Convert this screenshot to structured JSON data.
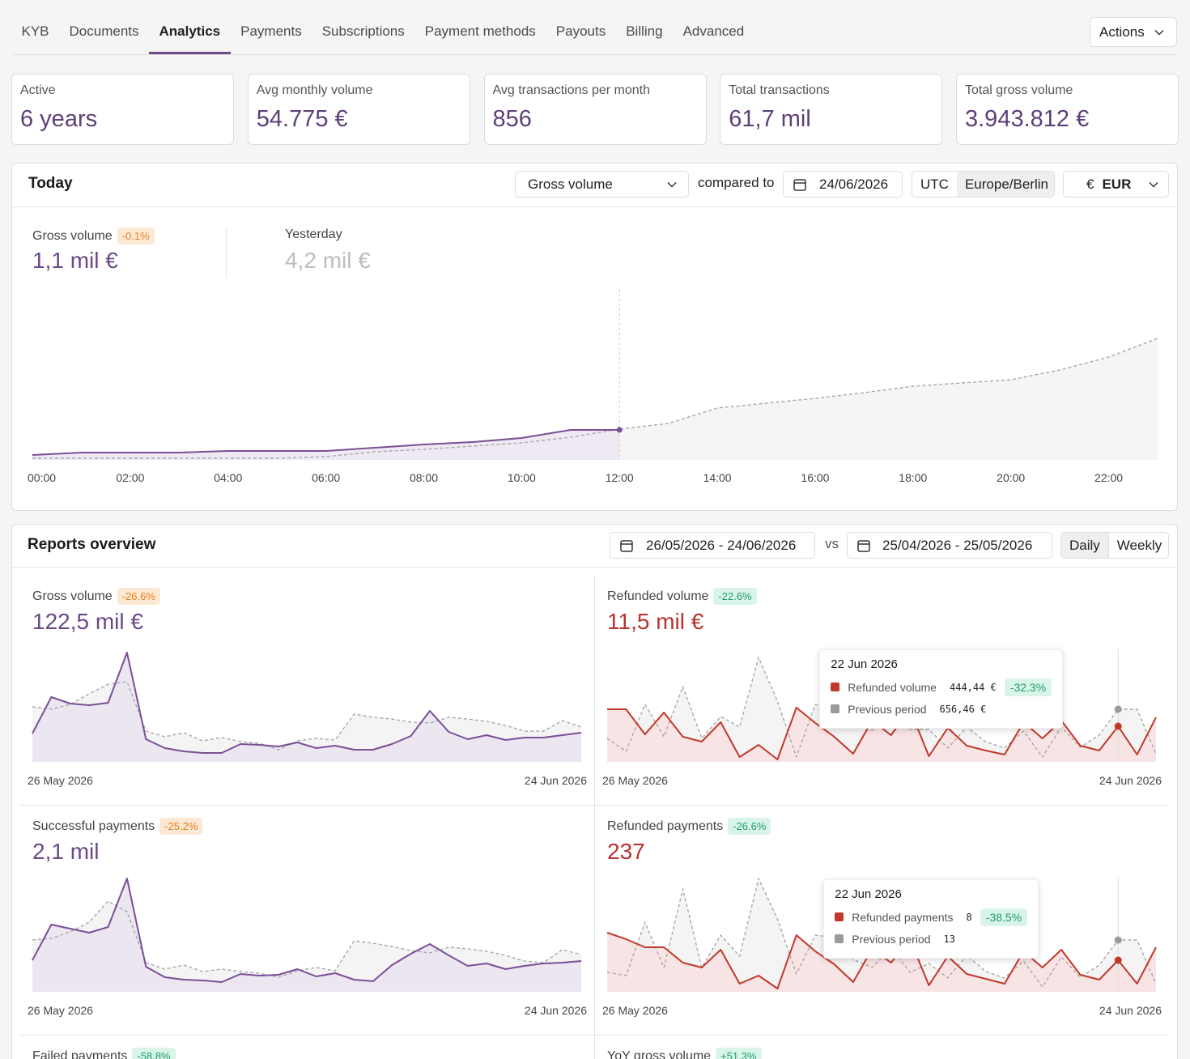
{
  "tabs": {
    "items": [
      "KYB",
      "Documents",
      "Analytics",
      "Payments",
      "Subscriptions",
      "Payment methods",
      "Payouts",
      "Billing",
      "Advanced"
    ],
    "active": "Analytics"
  },
  "actions": "Actions",
  "stats": [
    {
      "label": "Active",
      "value": "6 years"
    },
    {
      "label": "Avg monthly volume",
      "value": "54.775 €"
    },
    {
      "label": "Avg transactions per month",
      "value": "856"
    },
    {
      "label": "Total transactions",
      "value": "61,7 mil"
    },
    {
      "label": "Total gross volume",
      "value": "3.943.812 €"
    }
  ],
  "today": {
    "title": "Today",
    "metric": "Gross volume",
    "compared_to": "compared to",
    "date": "24/06/2026",
    "timezones": [
      "UTC",
      "Europe/Berlin"
    ],
    "selected_timezone": "Europe/Berlin",
    "currency_symbol": "€",
    "currency": "EUR",
    "current": {
      "label": "Gross volume",
      "change": "-0.1%",
      "value": "1,1 mil €"
    },
    "comparison": {
      "label": "Yesterday",
      "value": "4,2 mil €"
    },
    "badge": {
      "color": "#e5811f",
      "background": "#fde8d4"
    },
    "chart_data": {
      "type": "line",
      "categories": [
        "00:00",
        null,
        "02:00",
        null,
        "04:00",
        null,
        "06:00",
        null,
        "08:00",
        null,
        "10:00",
        null,
        "12:00",
        null,
        "14:00",
        null,
        "16:00",
        null,
        "18:00",
        null,
        "20:00",
        null,
        "22:00",
        null
      ],
      "ylim": [
        0,
        210
      ],
      "series": [
        {
          "name": "Gross volume",
          "color": "#7b4f96",
          "values": [
            6,
            9,
            9,
            9,
            11,
            11,
            11,
            15,
            19,
            22,
            27,
            37,
            37,
            null,
            null,
            null,
            null,
            null,
            null,
            null,
            null,
            null,
            null,
            null
          ]
        },
        {
          "name": "Yesterday",
          "color": "#a8a8a8",
          "values": [
            2,
            2,
            2,
            2,
            2,
            2,
            4,
            10,
            13,
            17,
            21,
            28,
            38,
            45,
            64,
            70,
            76,
            83,
            91,
            95,
            99,
            111,
            127,
            150
          ]
        }
      ]
    }
  },
  "reports": {
    "title": "Reports overview",
    "range": "26/05/2026 - 24/06/2026",
    "vs": "vs",
    "compare_range": "25/04/2026 - 25/05/2026",
    "granularity": [
      "Daily",
      "Weekly"
    ],
    "selected_granularity": "Daily",
    "panels": [
      {
        "title": "Gross volume",
        "change": "-26.6%",
        "value": "122,5 mil €",
        "value_color": "#6a4a86",
        "badge": {
          "color": "#e5811f",
          "background": "#fde8d4"
        },
        "start": "26 May 2026",
        "end": "24 Jun 2026",
        "chart_data": {
          "type": "area",
          "ylim": [
            0,
            140
          ],
          "series": [
            {
              "name": "Gross volume",
              "color": "#7b4f96",
              "fill": "#ece6f1",
              "values": [
                35,
                80,
                72,
                70,
                73,
                135,
                28,
                17,
                13,
                11,
                11,
                22,
                21,
                19,
                24,
                17,
                20,
                15,
                15,
                22,
                32,
                63,
                37,
                28,
                33,
                27,
                30,
                30,
                33,
                36
              ]
            },
            {
              "name": "Previous period",
              "color": "#a8a8a8",
              "fill": "#f4f4f4",
              "values": [
                68,
                65,
                71,
                84,
                96,
                99,
                38,
                31,
                36,
                26,
                30,
                25,
                23,
                15,
                26,
                29,
                27,
                59,
                55,
                53,
                49,
                48,
                55,
                53,
                50,
                45,
                38,
                38,
                51,
                43
              ]
            }
          ]
        }
      },
      {
        "title": "Refunded volume",
        "change": "-22.6%",
        "value": "11,5 mil €",
        "value_color": "#b83232",
        "badge": {
          "color": "#1f9d6b",
          "background": "#d9f4e8"
        },
        "start": "26 May 2026",
        "end": "24 Jun 2026",
        "chart_data": {
          "type": "area",
          "ylim": [
            0,
            140
          ],
          "series": [
            {
              "name": "Refunded volume",
              "color": "#c0392b",
              "fill": "#f8e4e4",
              "values": [
                65,
                65,
                34,
                61,
                31,
                25,
                49,
                6,
                21,
                3,
                67,
                48,
                31,
                10,
                51,
                33,
                65,
                7,
                42,
                20,
                14,
                9,
                49,
                29,
                51,
                20,
                14,
                44,
                9,
                55
              ]
            },
            {
              "name": "Previous period",
              "color": "#a8a8a8",
              "fill": "#f4f4f4",
              "values": [
                29,
                13,
                71,
                31,
                93,
                29,
                56,
                43,
                129,
                75,
                6,
                71,
                63,
                48,
                39,
                55,
                40,
                40,
                17,
                43,
                25,
                17,
                38,
                6,
                43,
                18,
                33,
                65,
                65,
                10
              ]
            }
          ]
        },
        "tooltip": {
          "date": "22 Jun 2026",
          "badge": {
            "color": "#1f9d6b",
            "background": "#d9f4e8"
          },
          "rows": [
            {
              "name": "Refunded volume",
              "value": "444,44 €",
              "change": "-32.3%"
            },
            {
              "name": "Previous period",
              "value": "656,46 €"
            }
          ]
        }
      },
      {
        "title": "Successful payments",
        "change": "-25.2%",
        "value": "2,1 mil",
        "value_color": "#6a4a86",
        "badge": {
          "color": "#e5811f",
          "background": "#fde8d4"
        },
        "start": "26 May 2026",
        "end": "24 Jun 2026",
        "chart_data": {
          "type": "area",
          "ylim": [
            0,
            140
          ],
          "series": [
            {
              "name": "Successful payments",
              "color": "#7b4f96",
              "fill": "#ece6f1",
              "values": [
                39,
                83,
                78,
                73,
                80,
                140,
                31,
                18,
                15,
                14,
                12,
                22,
                20,
                21,
                28,
                19,
                23,
                15,
                13,
                33,
                47,
                59,
                45,
                32,
                35,
                28,
                32,
                35,
                36,
                38
              ]
            },
            {
              "name": "Previous period",
              "color": "#a8a8a8",
              "fill": "#f4f4f4",
              "values": [
                64,
                66,
                74,
                86,
                112,
                99,
                36,
                28,
                33,
                25,
                28,
                25,
                23,
                18,
                26,
                30,
                26,
                63,
                60,
                56,
                51,
                48,
                55,
                53,
                50,
                45,
                38,
                36,
                52,
                46
              ]
            }
          ]
        }
      },
      {
        "title": "Refunded payments",
        "change": "-26.6%",
        "value": "237",
        "value_color": "#b83232",
        "badge": {
          "color": "#1f9d6b",
          "background": "#d9f4e8"
        },
        "start": "26 May 2026",
        "end": "24 Jun 2026",
        "chart_data": {
          "type": "area",
          "ylim": [
            0,
            140
          ],
          "series": [
            {
              "name": "Refunded payments",
              "color": "#c0392b",
              "fill": "#f8e4e4",
              "values": [
                73,
                65,
                55,
                55,
                36,
                30,
                52,
                10,
                20,
                4,
                70,
                50,
                34,
                12,
                53,
                36,
                65,
                8,
                44,
                22,
                16,
                10,
                50,
                30,
                52,
                21,
                15,
                39,
                10,
                55
              ]
            },
            {
              "name": "Previous period",
              "color": "#a8a8a8",
              "fill": "#f4f4f4",
              "values": [
                24,
                20,
                86,
                30,
                127,
                30,
                70,
                44,
                140,
                90,
                22,
                70,
                67,
                40,
                30,
                54,
                24,
                35,
                17,
                45,
                25,
                17,
                38,
                6,
                43,
                18,
                33,
                64,
                64,
                10
              ]
            }
          ]
        },
        "tooltip": {
          "date": "22 Jun 2026",
          "badge": {
            "color": "#1f9d6b",
            "background": "#d9f4e8"
          },
          "rows": [
            {
              "name": "Refunded payments",
              "value": "8",
              "change": "-38.5%"
            },
            {
              "name": "Previous period",
              "value": "13"
            }
          ]
        }
      },
      {
        "title": "Failed payments",
        "change": "-58.8%",
        "badge": {
          "color": "#1f9d6b",
          "background": "#d9f4e8"
        }
      },
      {
        "title": "YoY gross volume",
        "change": "+51.3%",
        "badge": {
          "color": "#1f9d6b",
          "background": "#d9f4e8"
        }
      }
    ]
  }
}
